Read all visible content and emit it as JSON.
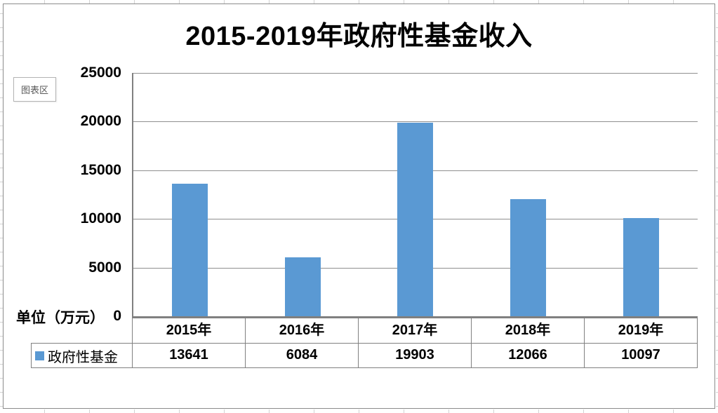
{
  "tooltip": {
    "label": "图表区"
  },
  "unit_label": "单位（万元）",
  "colors": {
    "bar": "#5A99D3",
    "gridline": "#8f8f8f",
    "axis": "#808080",
    "table_border": "#808080"
  },
  "chart_data": {
    "type": "bar",
    "title": "2015-2019年政府性基金收入",
    "categories": [
      "2015年",
      "2016年",
      "2017年",
      "2018年",
      "2019年"
    ],
    "series": [
      {
        "name": "政府性基金",
        "values": [
          13641,
          6084,
          19903,
          12066,
          10097
        ]
      }
    ],
    "xlabel": "",
    "ylabel": "",
    "unit": "万元",
    "ylim": [
      0,
      25000
    ],
    "ytick_interval": 5000,
    "yticks": [
      25000,
      20000,
      15000,
      10000,
      5000,
      0
    ],
    "grid": true,
    "legend_position": "bottom-left-of-data-table",
    "data_table_shown": true
  }
}
